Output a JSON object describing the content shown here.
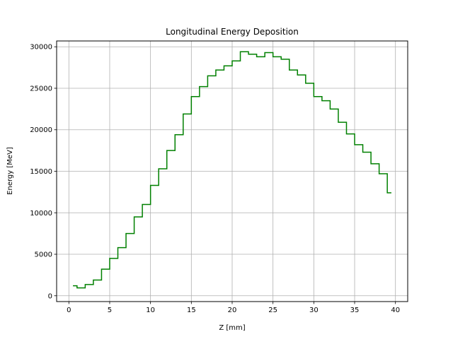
{
  "chart_data": {
    "type": "line",
    "step": "mid",
    "title": "Longitudinal Energy Deposition",
    "xlabel": "Z [mm]",
    "ylabel": "Energy [MeV]",
    "xlim": [
      -1.5,
      41.5
    ],
    "ylim": [
      -700,
      30700
    ],
    "x_ticks": [
      0,
      5,
      10,
      15,
      20,
      25,
      30,
      35,
      40
    ],
    "y_ticks": [
      0,
      5000,
      10000,
      15000,
      20000,
      25000,
      30000
    ],
    "grid": true,
    "line_color": "#008000",
    "series": [
      {
        "x": [
          0.5,
          1.5,
          2.5,
          3.5,
          4.5,
          5.5,
          6.5,
          7.5,
          8.5,
          9.5,
          10.5,
          11.5,
          12.5,
          13.5,
          14.5,
          15.5,
          16.5,
          17.5,
          18.5,
          19.5,
          20.5,
          21.5,
          22.5,
          23.5,
          24.5,
          25.5,
          26.5,
          27.5,
          28.5,
          29.5,
          30.5,
          31.5,
          32.5,
          33.5,
          34.5,
          35.5,
          36.5,
          37.5,
          38.5,
          39.5
        ],
        "values": [
          1200,
          950,
          1350,
          1900,
          3200,
          4500,
          5800,
          7500,
          9500,
          11000,
          13300,
          15300,
          17500,
          19400,
          21900,
          24000,
          25200,
          26500,
          27200,
          27700,
          28300,
          29400,
          29100,
          28800,
          29300,
          28800,
          28500,
          27200,
          26600,
          25600,
          24000,
          23500,
          22500,
          20900,
          19500,
          18200,
          17300,
          15900,
          14700,
          12400
        ]
      }
    ]
  }
}
